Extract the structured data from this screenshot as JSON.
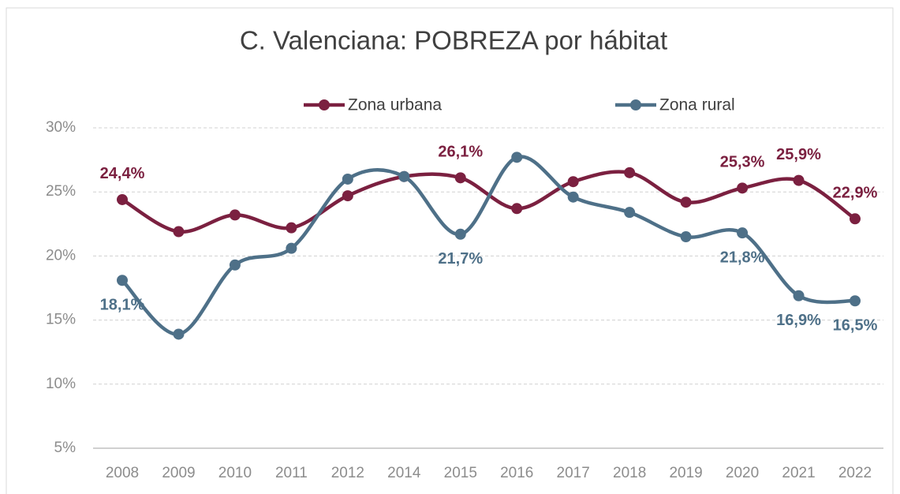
{
  "chart_data": {
    "type": "line",
    "title": "C. Valenciana: POBREZA por hábitat",
    "categories": [
      "2008",
      "2009",
      "2010",
      "2011",
      "2012",
      "2014",
      "2015",
      "2016",
      "2017",
      "2018",
      "2019",
      "2020",
      "2021",
      "2022"
    ],
    "series": [
      {
        "name": "Zona urbana",
        "color": "#7b2040",
        "values": [
          24.4,
          21.9,
          23.2,
          22.2,
          24.7,
          26.2,
          26.1,
          23.7,
          25.8,
          26.5,
          24.2,
          25.3,
          25.9,
          22.9
        ],
        "value_labels": [
          "24,4%",
          null,
          null,
          null,
          null,
          null,
          "26,1%",
          null,
          null,
          null,
          null,
          "25,3%",
          "25,9%",
          "22,9%"
        ]
      },
      {
        "name": "Zona rural",
        "color": "#4e7088",
        "values": [
          18.1,
          13.9,
          19.3,
          20.6,
          26.0,
          26.2,
          21.7,
          27.7,
          24.6,
          23.4,
          21.5,
          21.8,
          16.9,
          16.5
        ],
        "value_labels": [
          "18,1%",
          null,
          null,
          null,
          null,
          null,
          "21,7%",
          null,
          null,
          null,
          null,
          "21,8%",
          "16,9%",
          "16,5%"
        ]
      }
    ],
    "ylim": [
      5,
      30
    ],
    "yticks": [
      {
        "value": 5,
        "label": "5%"
      },
      {
        "value": 10,
        "label": "10%"
      },
      {
        "value": 15,
        "label": "15%"
      },
      {
        "value": 20,
        "label": "20%"
      },
      {
        "value": 25,
        "label": "25%"
      },
      {
        "value": 30,
        "label": "30%"
      }
    ],
    "grid": true,
    "legend": "top"
  }
}
